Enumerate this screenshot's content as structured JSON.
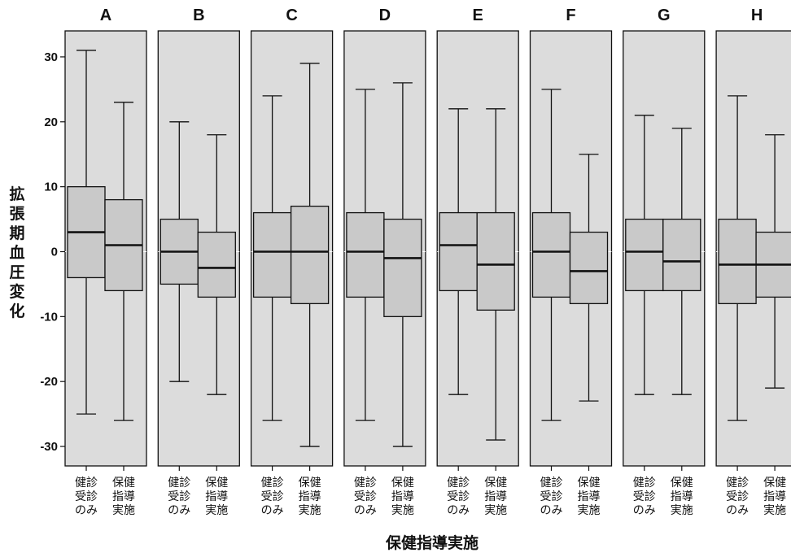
{
  "chart_data": {
    "type": "box",
    "xlabel": "保健指導実施",
    "ylabel": "拡張期血圧変化",
    "ylim": [
      -33,
      34
    ],
    "yticks": [
      30,
      20,
      10,
      0,
      -10,
      -20,
      -30
    ],
    "reference_line": 0,
    "categories": [
      "健診受診のみ",
      "保健指導実施"
    ],
    "category_lines": [
      [
        "健診",
        "受診",
        "のみ"
      ],
      [
        "保健",
        "指導",
        "実施"
      ]
    ],
    "colors": {
      "panel_bg": "#dcdcdc",
      "box_fill": "#c9c9c9",
      "stroke": "#111111"
    },
    "panels": [
      {
        "title": "A",
        "groups": [
          {
            "category": "健診受診のみ",
            "whisker_low": -25,
            "q1": -4,
            "median": 3,
            "q3": 10,
            "whisker_high": 31
          },
          {
            "category": "保健指導実施",
            "whisker_low": -26,
            "q1": -6,
            "median": 1,
            "q3": 8,
            "whisker_high": 23
          }
        ]
      },
      {
        "title": "B",
        "groups": [
          {
            "category": "健診受診のみ",
            "whisker_low": -20,
            "q1": -5,
            "median": 0,
            "q3": 5,
            "whisker_high": 20
          },
          {
            "category": "保健指導実施",
            "whisker_low": -22,
            "q1": -7,
            "median": -2.5,
            "q3": 3,
            "whisker_high": 18
          }
        ]
      },
      {
        "title": "C",
        "groups": [
          {
            "category": "健診受診のみ",
            "whisker_low": -26,
            "q1": -7,
            "median": 0,
            "q3": 6,
            "whisker_high": 24
          },
          {
            "category": "保健指導実施",
            "whisker_low": -30,
            "q1": -8,
            "median": 0,
            "q3": 7,
            "whisker_high": 29
          }
        ]
      },
      {
        "title": "D",
        "groups": [
          {
            "category": "健診受診のみ",
            "whisker_low": -26,
            "q1": -7,
            "median": 0,
            "q3": 6,
            "whisker_high": 25
          },
          {
            "category": "保健指導実施",
            "whisker_low": -30,
            "q1": -10,
            "median": -1,
            "q3": 5,
            "whisker_high": 26
          }
        ]
      },
      {
        "title": "E",
        "groups": [
          {
            "category": "健診受診のみ",
            "whisker_low": -22,
            "q1": -6,
            "median": 1,
            "q3": 6,
            "whisker_high": 22
          },
          {
            "category": "保健指導実施",
            "whisker_low": -29,
            "q1": -9,
            "median": -2,
            "q3": 6,
            "whisker_high": 22
          }
        ]
      },
      {
        "title": "F",
        "groups": [
          {
            "category": "健診受診のみ",
            "whisker_low": -26,
            "q1": -7,
            "median": 0,
            "q3": 6,
            "whisker_high": 25
          },
          {
            "category": "保健指導実施",
            "whisker_low": -23,
            "q1": -8,
            "median": -3,
            "q3": 3,
            "whisker_high": 15
          }
        ]
      },
      {
        "title": "G",
        "groups": [
          {
            "category": "健診受診のみ",
            "whisker_low": -22,
            "q1": -6,
            "median": 0,
            "q3": 5,
            "whisker_high": 21
          },
          {
            "category": "保健指導実施",
            "whisker_low": -22,
            "q1": -6,
            "median": -1.5,
            "q3": 5,
            "whisker_high": 19
          }
        ]
      },
      {
        "title": "H",
        "groups": [
          {
            "category": "健診受診のみ",
            "whisker_low": -26,
            "q1": -8,
            "median": -2,
            "q3": 5,
            "whisker_high": 24
          },
          {
            "category": "保健指導実施",
            "whisker_low": -21,
            "q1": -7,
            "median": -2,
            "q3": 3,
            "whisker_high": 18
          }
        ]
      }
    ]
  }
}
